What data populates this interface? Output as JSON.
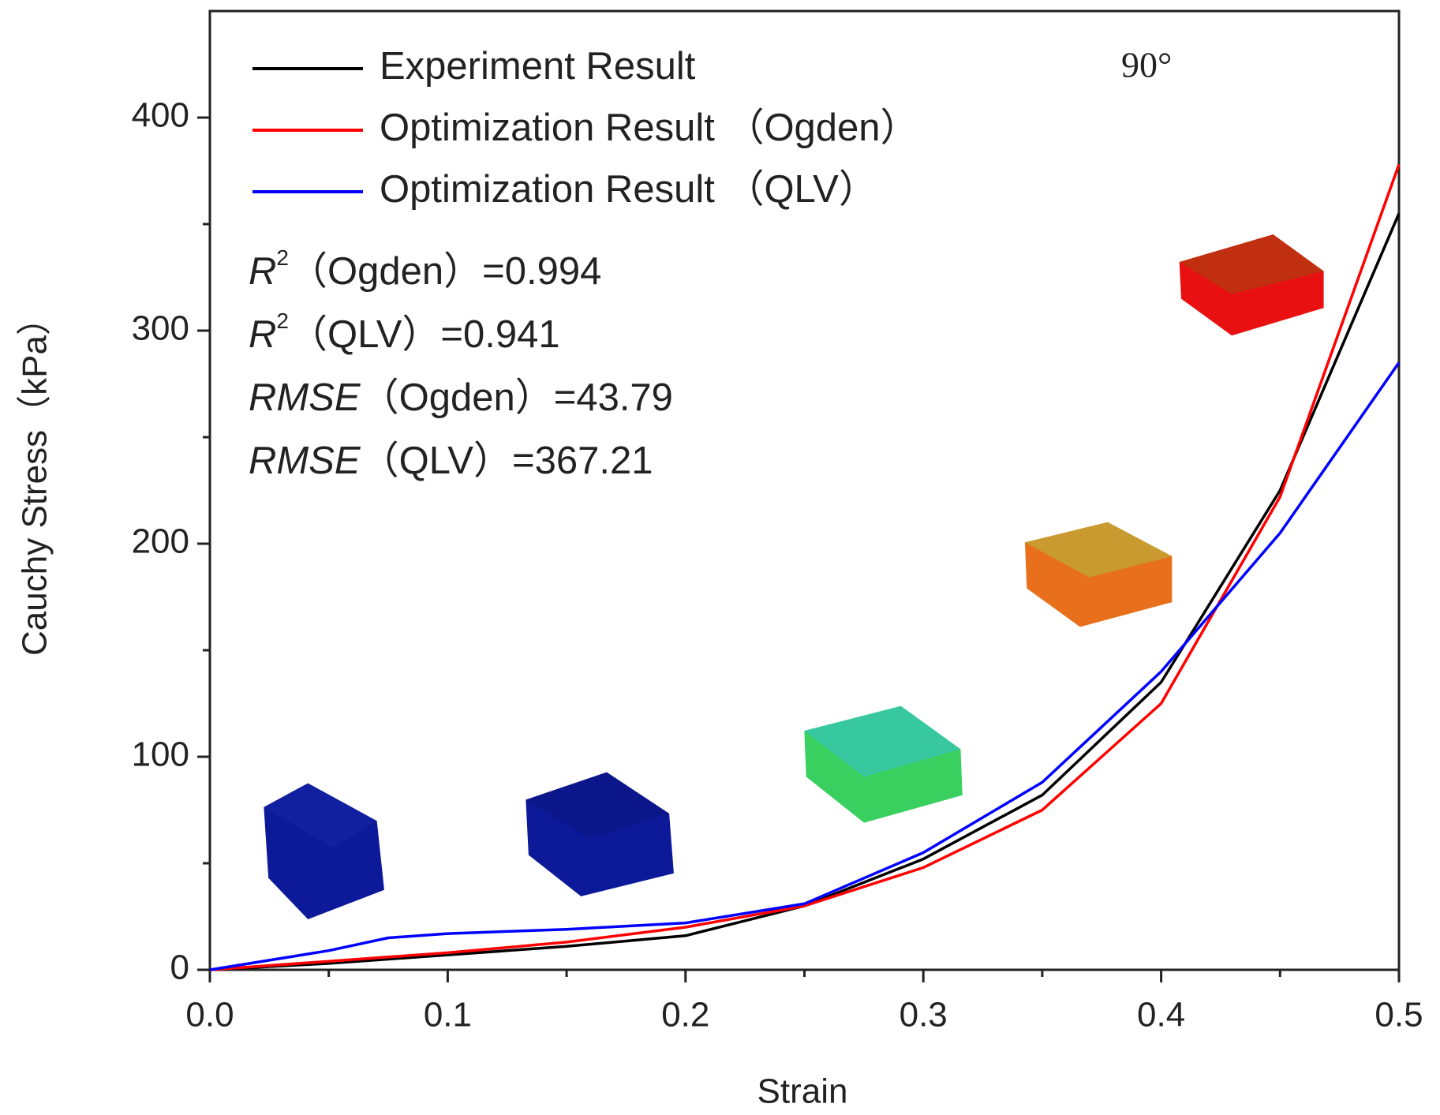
{
  "chart_data": {
    "type": "line",
    "x_label": "Strain",
    "y_label": "Cauchy Stress（kPa）",
    "x": [
      0,
      0.05,
      0.075,
      0.1,
      0.15,
      0.2,
      0.25,
      0.3,
      0.35,
      0.4,
      0.45,
      0.5
    ],
    "series": [
      {
        "name": "Experiment Result",
        "color": "#000000",
        "values": [
          0,
          3,
          5,
          7,
          11,
          16,
          30,
          52,
          82,
          135,
          225,
          355
        ]
      },
      {
        "name": "Optimization Result （Ogden）",
        "color": "#ff0000",
        "values": [
          0,
          4,
          6,
          8,
          13,
          20,
          30,
          48,
          75,
          125,
          222,
          378
        ]
      },
      {
        "name": "Optimization Result （QLV）",
        "color": "#0000ff",
        "values": [
          0,
          9,
          15,
          17,
          19,
          22,
          31,
          55,
          88,
          140,
          205,
          285
        ]
      }
    ],
    "xlim": [
      0,
      0.5
    ],
    "ylim": [
      0,
      450
    ],
    "xticks": [
      {
        "value": 0,
        "label": "0.0"
      },
      0.1,
      0.2,
      0.3,
      0.4,
      0.5
    ],
    "yticks": [
      0,
      100,
      200,
      300,
      400
    ],
    "x_minor_ticks": [
      0.05,
      0.15,
      0.25,
      0.35,
      0.45
    ],
    "y_minor_ticks": [
      50,
      150,
      250,
      350
    ],
    "legend": "upper left",
    "label_90": "90°",
    "annotations": [
      {
        "symbol": "R",
        "sup": "2",
        "text": "（Ogden）=0.994"
      },
      {
        "symbol": "R",
        "sup": "2",
        "text": "（QLV）=0.941"
      },
      {
        "symbol": "RMSE",
        "text": "（Ogden）=43.79"
      },
      {
        "symbol": "RMSE",
        "text": "（QLV）=367.21"
      }
    ]
  }
}
